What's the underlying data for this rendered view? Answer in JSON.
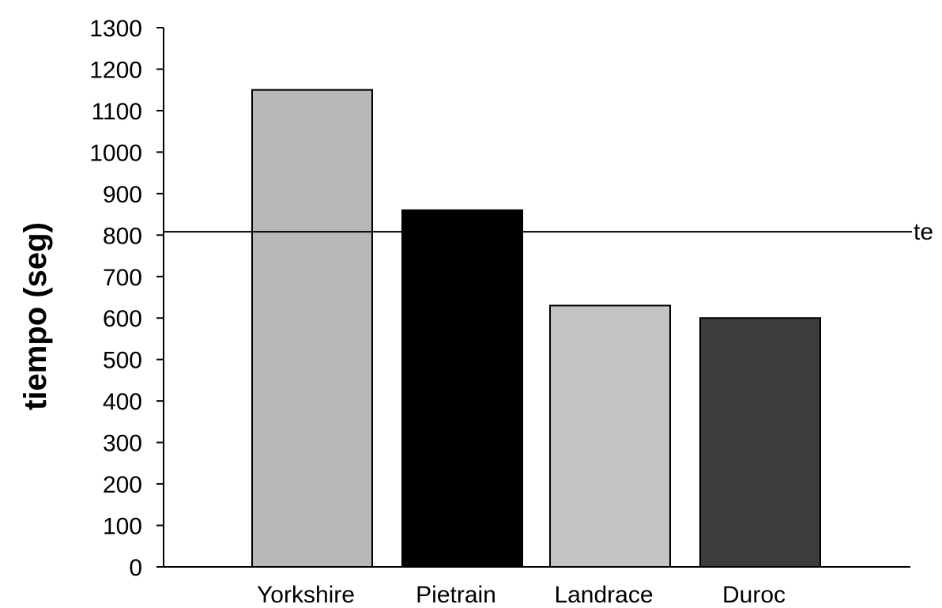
{
  "chart_data": {
    "type": "bar",
    "title": "",
    "xlabel": "",
    "ylabel": "tiempo (seg)",
    "ylim": [
      0,
      1300
    ],
    "yticks": [
      0,
      100,
      200,
      300,
      400,
      500,
      600,
      700,
      800,
      900,
      1000,
      1100,
      1200,
      1300
    ],
    "categories": [
      "Yorkshire",
      "Pietrain",
      "Landrace",
      "Duroc"
    ],
    "values": [
      1150,
      860,
      630,
      600
    ],
    "bar_colors": [
      "#b8b8b8",
      "#000000",
      "#c4c4c4",
      "#3c3c3c"
    ],
    "grid": false,
    "reference_line": {
      "value": 808,
      "label": "te"
    }
  }
}
